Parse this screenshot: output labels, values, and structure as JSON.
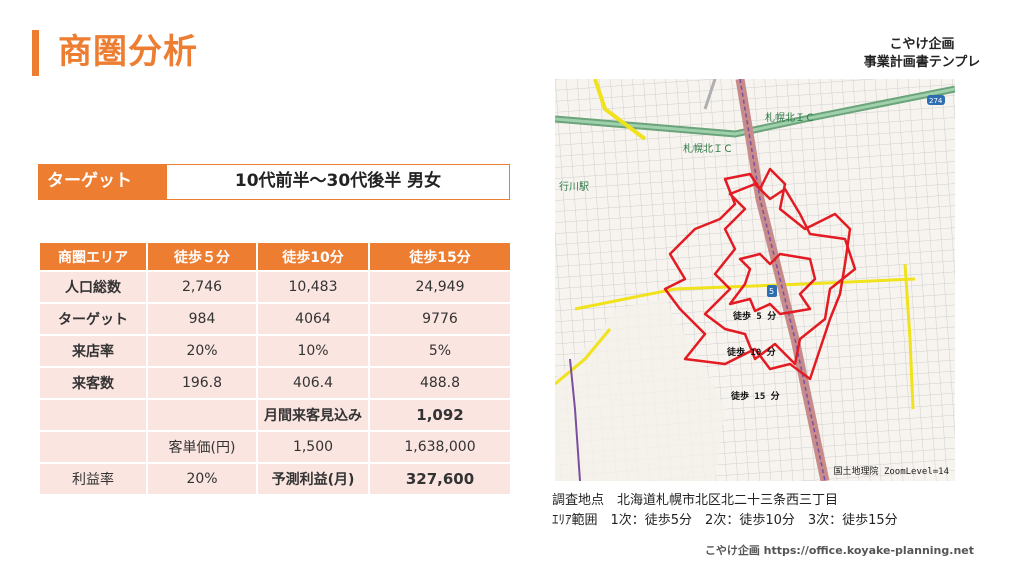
{
  "title": "商圏分析",
  "brand": {
    "line1": "こやけ企画",
    "line2": "事業計画書テンプレ"
  },
  "target": {
    "label": "ターゲット",
    "value": "10代前半～30代後半 男女"
  },
  "table": {
    "headers": [
      "商圏エリア",
      "徒歩５分",
      "徒歩10分",
      "徒歩15分"
    ],
    "rows": [
      [
        "人口総数",
        "2,746",
        "10,483",
        "24,949"
      ],
      [
        "ターゲット",
        "984",
        "4064",
        "9776"
      ],
      [
        "来店率",
        "20%",
        "10%",
        "5%"
      ],
      [
        "来客数",
        "196.8",
        "406.4",
        "488.8"
      ],
      [
        "",
        "",
        "月間来客見込み",
        "1,092"
      ],
      [
        "",
        "客単価(円)",
        "1,500",
        "1,638,000"
      ],
      [
        "利益率",
        "20%",
        "予測利益(月)",
        "327,600"
      ]
    ]
  },
  "map": {
    "labels": {
      "ic1": "札幌北ＩＣ",
      "ic2": "札幌北ＩＣ",
      "station": "行川駅",
      "route": "274",
      "marker": "5",
      "walk5": "徒歩 5 分",
      "walk10": "徒歩 10 分",
      "walk15": "徒歩 15 分"
    },
    "credit": "国土地理院 ZoomLevel=14",
    "colors": {
      "isochrone": "#e31b23",
      "highway": "#4a9d5c",
      "road_yellow": "#f0e21c",
      "main_road": "#c07070",
      "route_sign": "#2f6db3"
    }
  },
  "caption": {
    "line1": "調査地点　北海道札幌市北区北二十三条西三丁目",
    "line2": "ｴﾘｱ範囲　1次：徒歩5分　2次：徒歩10分　3次：徒歩15分"
  },
  "footer": "こやけ企画 https://office.koyake-planning.net"
}
